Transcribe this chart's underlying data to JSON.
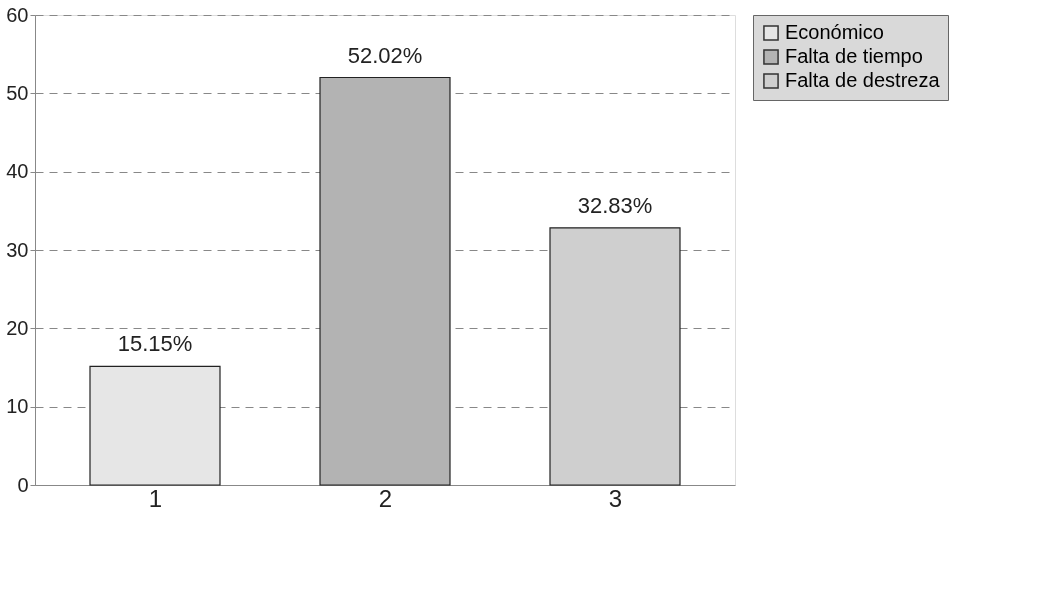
{
  "chart_data": {
    "type": "bar",
    "categories": [
      "1",
      "2",
      "3"
    ],
    "series": [
      {
        "name": "Económico",
        "color": "#e6e6e6",
        "values": [
          15.15,
          null,
          null
        ],
        "value_labels": [
          "15.15%",
          null,
          null
        ]
      },
      {
        "name": "Falta de tiempo",
        "color": "#b3b3b3",
        "values": [
          null,
          52.02,
          null
        ],
        "value_labels": [
          null,
          "52.02%",
          null
        ]
      },
      {
        "name": "Falta de destreza",
        "color": "#cfcfcf",
        "values": [
          null,
          null,
          32.83
        ],
        "value_labels": [
          null,
          null,
          "32.83%"
        ]
      }
    ],
    "ylim": [
      0,
      60
    ],
    "yticks": [
      0,
      10,
      20,
      30,
      40,
      50,
      60
    ],
    "grid": "y",
    "legend": "right"
  }
}
